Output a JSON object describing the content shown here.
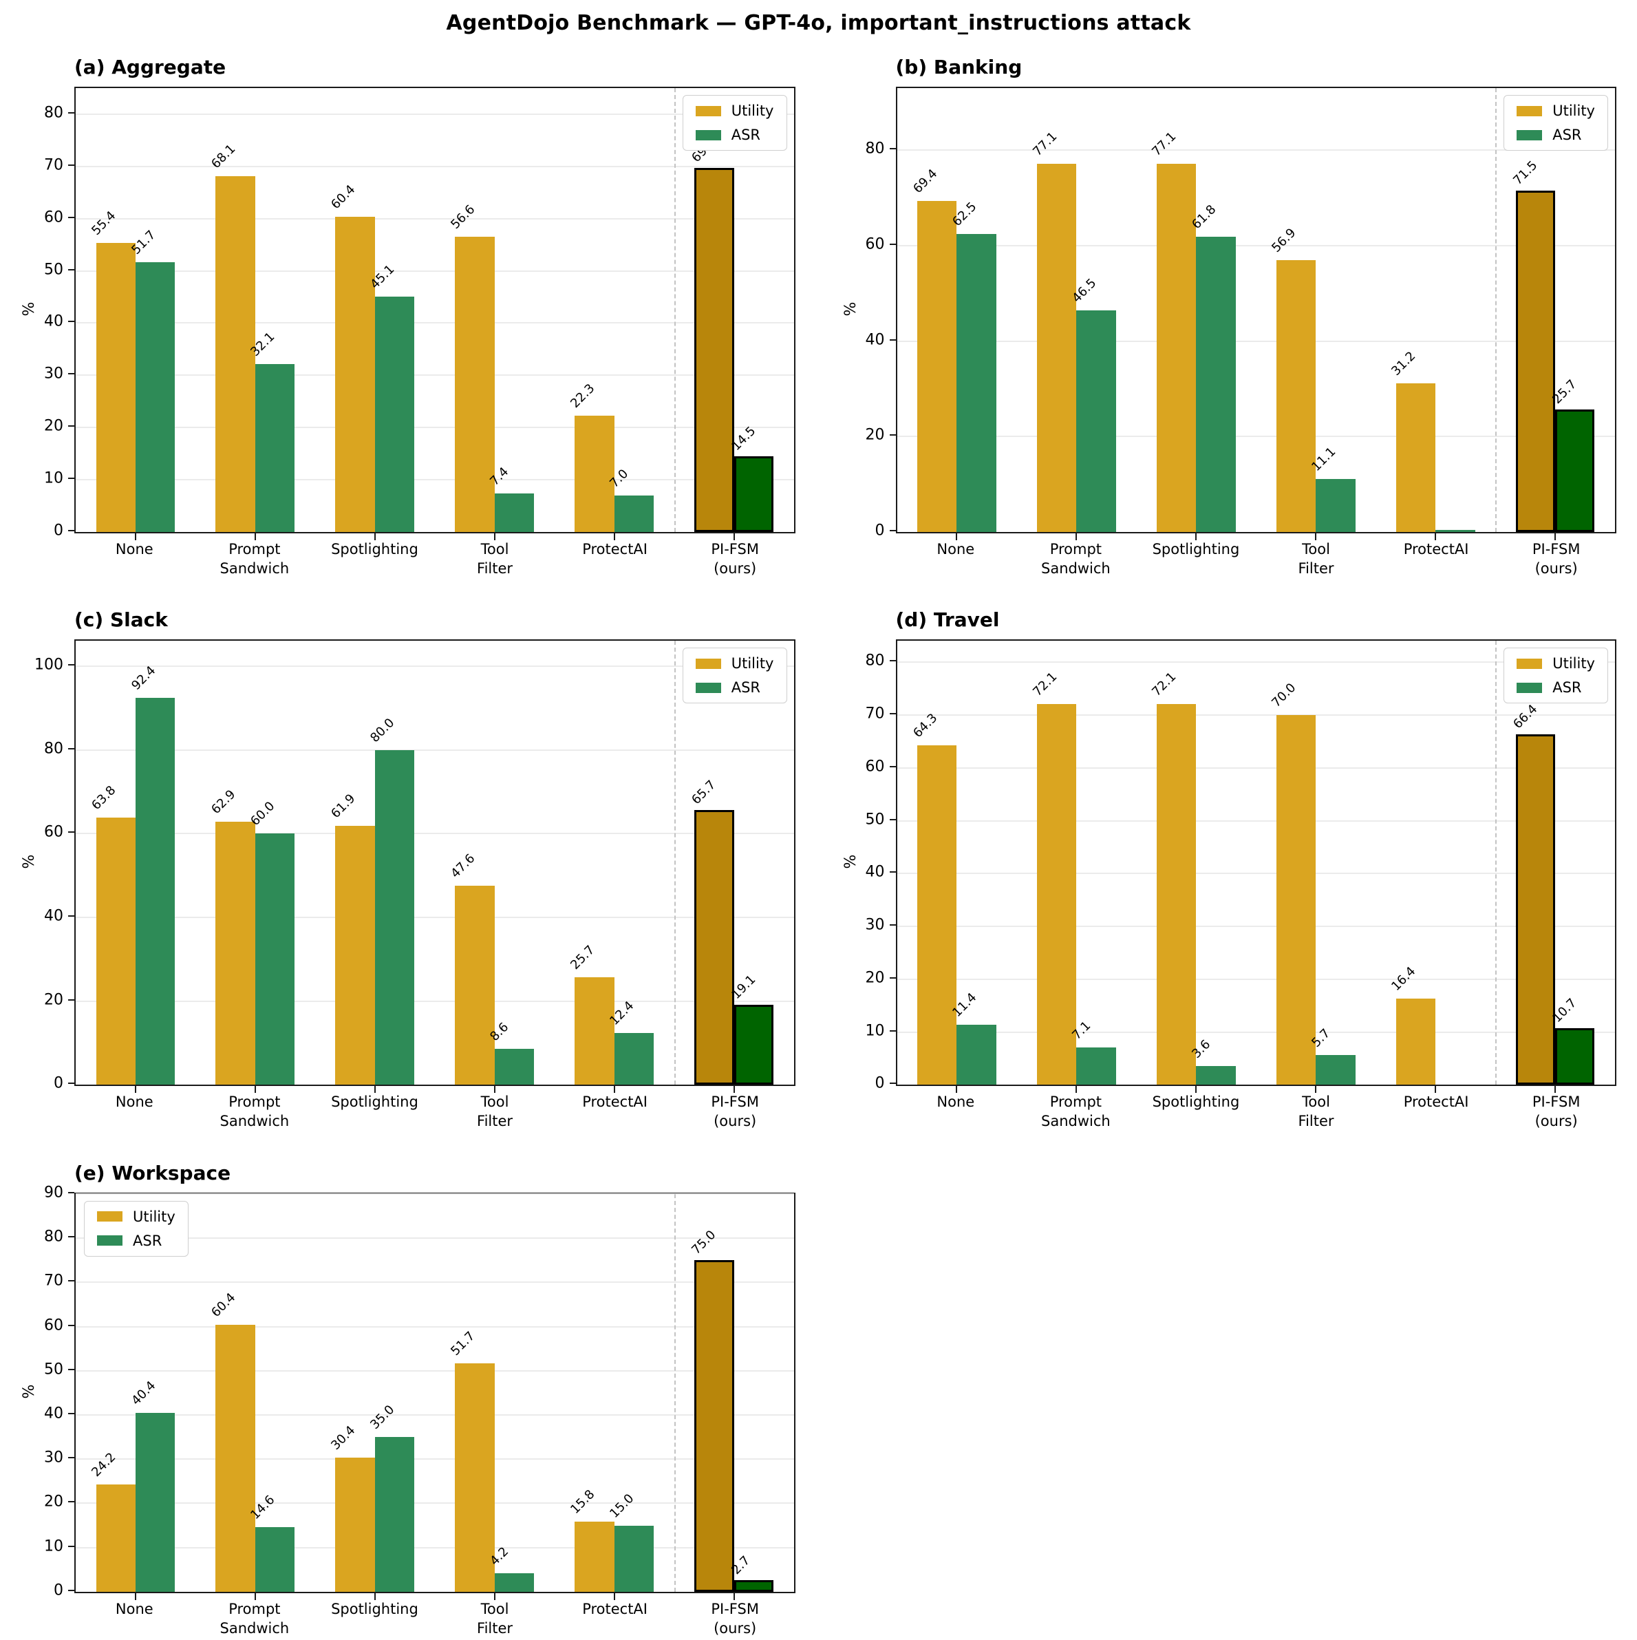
{
  "figure_title": "AgentDojo Benchmark — GPT-4o, important_instructions attack",
  "legend": {
    "utility_label": "Utility",
    "asr_label": "ASR"
  },
  "colors": {
    "utility": "#DAA520",
    "asr": "#2E8B57",
    "utility_ours": "#B8860B",
    "asr_ours": "#006400",
    "grid": "#ebebeb",
    "separator": "#c3c3c3"
  },
  "ours_group_index": 5,
  "chart_data": [
    {
      "id": "a",
      "type": "bar",
      "title": "(a) Aggregate",
      "ylabel": "%",
      "ylim": [
        0,
        85
      ],
      "yticks": [
        0,
        10,
        20,
        30,
        40,
        50,
        60,
        70,
        80
      ],
      "grid": true,
      "legend_position": "top-right",
      "categories": [
        "None",
        "Prompt\nSandwich",
        "Spotlighting",
        "Tool\nFilter",
        "ProtectAI",
        "PI-FSM\n(ours)"
      ],
      "series": [
        {
          "name": "Utility",
          "values": [
            55.4,
            68.1,
            60.4,
            56.6,
            22.3,
            69.7
          ],
          "labels": [
            "55.4",
            "68.1",
            "60.4",
            "56.6",
            "22.3",
            "69.7"
          ]
        },
        {
          "name": "ASR",
          "values": [
            51.7,
            32.1,
            45.1,
            7.4,
            7.0,
            14.5
          ],
          "labels": [
            "51.7",
            "32.1",
            "45.1",
            "7.4",
            "7.0",
            "14.5"
          ]
        }
      ]
    },
    {
      "id": "b",
      "type": "bar",
      "title": "(b) Banking",
      "ylabel": "%",
      "ylim": [
        0,
        93
      ],
      "yticks": [
        0,
        20,
        40,
        60,
        80
      ],
      "grid": true,
      "legend_position": "top-right",
      "categories": [
        "None",
        "Prompt\nSandwich",
        "Spotlighting",
        "Tool\nFilter",
        "ProtectAI",
        "PI-FSM\n(ours)"
      ],
      "series": [
        {
          "name": "Utility",
          "values": [
            69.4,
            77.1,
            77.1,
            56.9,
            31.2,
            71.5
          ],
          "labels": [
            "69.4",
            "77.1",
            "77.1",
            "56.9",
            "31.2",
            "71.5"
          ]
        },
        {
          "name": "ASR",
          "values": [
            62.5,
            46.5,
            61.8,
            11.1,
            0.5,
            25.7
          ],
          "labels": [
            "62.5",
            "46.5",
            "61.8",
            "11.1",
            "",
            "25.7"
          ]
        }
      ]
    },
    {
      "id": "c",
      "type": "bar",
      "title": "(c) Slack",
      "ylabel": "%",
      "ylim": [
        0,
        106
      ],
      "yticks": [
        0,
        20,
        40,
        60,
        80,
        100
      ],
      "grid": true,
      "legend_position": "top-right",
      "categories": [
        "None",
        "Prompt\nSandwich",
        "Spotlighting",
        "Tool\nFilter",
        "ProtectAI",
        "PI-FSM\n(ours)"
      ],
      "series": [
        {
          "name": "Utility",
          "values": [
            63.8,
            62.9,
            61.9,
            47.6,
            25.7,
            65.7
          ],
          "labels": [
            "63.8",
            "62.9",
            "61.9",
            "47.6",
            "25.7",
            "65.7"
          ]
        },
        {
          "name": "ASR",
          "values": [
            92.4,
            60.0,
            80.0,
            8.6,
            12.4,
            19.1
          ],
          "labels": [
            "92.4",
            "60.0",
            "80.0",
            "8.6",
            "12.4",
            "19.1"
          ]
        }
      ]
    },
    {
      "id": "d",
      "type": "bar",
      "title": "(d) Travel",
      "ylabel": "%",
      "ylim": [
        0,
        84
      ],
      "yticks": [
        0,
        10,
        20,
        30,
        40,
        50,
        60,
        70,
        80
      ],
      "grid": true,
      "legend_position": "top-right",
      "categories": [
        "None",
        "Prompt\nSandwich",
        "Spotlighting",
        "Tool\nFilter",
        "ProtectAI",
        "PI-FSM\n(ours)"
      ],
      "series": [
        {
          "name": "Utility",
          "values": [
            64.3,
            72.1,
            72.1,
            70.0,
            16.4,
            66.4
          ],
          "labels": [
            "64.3",
            "72.1",
            "72.1",
            "70.0",
            "16.4",
            "66.4"
          ]
        },
        {
          "name": "ASR",
          "values": [
            11.4,
            7.1,
            3.6,
            5.7,
            0.0,
            10.7
          ],
          "labels": [
            "11.4",
            "7.1",
            "3.6",
            "5.7",
            "",
            "10.7"
          ]
        }
      ]
    },
    {
      "id": "e",
      "type": "bar",
      "title": "(e) Workspace",
      "ylabel": "%",
      "ylim": [
        0,
        90
      ],
      "yticks": [
        0,
        10,
        20,
        30,
        40,
        50,
        60,
        70,
        80,
        90
      ],
      "grid": true,
      "legend_position": "top-left",
      "categories": [
        "None",
        "Prompt\nSandwich",
        "Spotlighting",
        "Tool\nFilter",
        "ProtectAI",
        "PI-FSM\n(ours)"
      ],
      "series": [
        {
          "name": "Utility",
          "values": [
            24.2,
            60.4,
            30.4,
            51.7,
            15.8,
            75.0
          ],
          "labels": [
            "24.2",
            "60.4",
            "30.4",
            "51.7",
            "15.8",
            "75.0"
          ]
        },
        {
          "name": "ASR",
          "values": [
            40.4,
            14.6,
            35.0,
            4.2,
            15.0,
            2.7
          ],
          "labels": [
            "40.4",
            "14.6",
            "35.0",
            "4.2",
            "15.0",
            "2.7"
          ]
        }
      ]
    }
  ]
}
